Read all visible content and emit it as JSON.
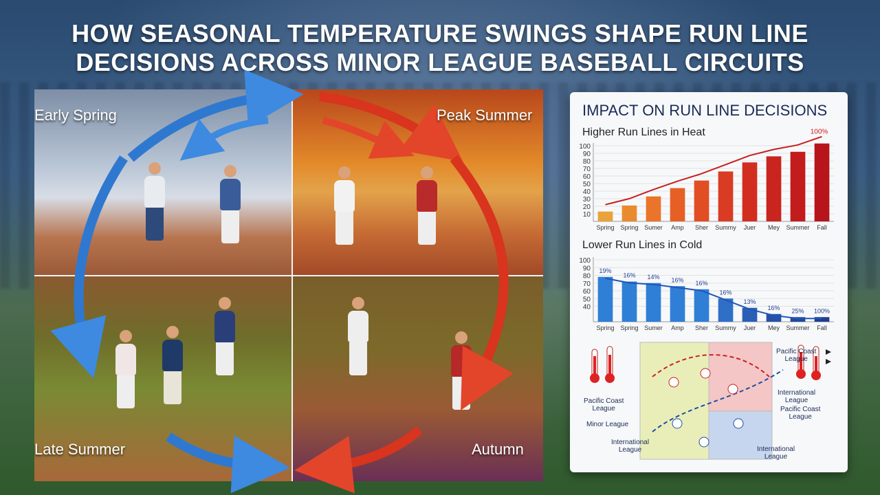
{
  "headline": {
    "line1": "HOW SEASONAL TEMPERATURE SWINGS SHAPE RUN LINE",
    "line2": "DECISIONS ACROSS MINOR LEAGUE BASEBALL CIRCUITS"
  },
  "seasons": {
    "early_spring": "Early Spring",
    "peak_summer": "Peak Summer",
    "late_summer": "Late Summer",
    "autumn": "Autumn"
  },
  "colors": {
    "cold_arrow": "#2f78d0",
    "hot_arrow": "#d8341e",
    "panel_title": "#1a2b55"
  },
  "panel": {
    "title": "IMPACT ON RUN LINE DECISIONS",
    "heat_title": "Higher Run Lines in Heat",
    "cold_title": "Lower Run Lines in Cold",
    "map_labels": {
      "pcl_top_right": "Pacific Coast\nLeague",
      "pcl_left": "Pacific Coast\nLeague",
      "minor_league": "Minor League",
      "intl_left": "International\nLeague",
      "intl_right_top": "International\nLeague",
      "pcl_right": "Pacific Coast\nLeague",
      "intl_bottom": "International\nLeague"
    }
  },
  "chart_data": [
    {
      "type": "bar",
      "title": "Higher Run Lines in Heat",
      "categories": [
        "Spring",
        "Spring",
        "Sumer",
        "Amp",
        "Sher",
        "Summy",
        "Juer",
        "Mey",
        "Summer",
        "Fall"
      ],
      "values": [
        13,
        21,
        33,
        44,
        54,
        66,
        78,
        86,
        92,
        103
      ],
      "ylim": [
        0,
        100
      ],
      "yticks": [
        10,
        20,
        30,
        40,
        50,
        60,
        70,
        80,
        90,
        100
      ],
      "data_labels": {
        "last": "100%"
      },
      "trend_line": true,
      "bar_colors": [
        "#e8a33a",
        "#ea8a2e",
        "#ea742a",
        "#e66026",
        "#e14e24",
        "#d93c22",
        "#d22e20",
        "#c9241e",
        "#c21c1c",
        "#b8141b"
      ],
      "line_color": "#c81e1e"
    },
    {
      "type": "bar",
      "title": "Lower Run Lines in Cold",
      "categories": [
        "Spring",
        "Spring",
        "Sumer",
        "Amp",
        "Sher",
        "Summy",
        "Juer",
        "Mey",
        "Summer",
        "Fall"
      ],
      "values": [
        78,
        72,
        70,
        66,
        62,
        50,
        38,
        30,
        26,
        26
      ],
      "ylim": [
        20,
        100
      ],
      "yticks": [
        40,
        50,
        60,
        70,
        80,
        90,
        100
      ],
      "data_labels": [
        "19%",
        "16%",
        "14%",
        "16%",
        "16%",
        "16%",
        "13%",
        "16%",
        "25%",
        "100%"
      ],
      "trend_line": true,
      "bar_colors": [
        "#2f7fd6",
        "#2f7fd6",
        "#2f7fd6",
        "#2f7fd6",
        "#2f7fd6",
        "#2f70c6",
        "#2a5fb6",
        "#2552a8",
        "#22489c",
        "#1f3f90"
      ],
      "line_color": "#1f56b8"
    }
  ]
}
